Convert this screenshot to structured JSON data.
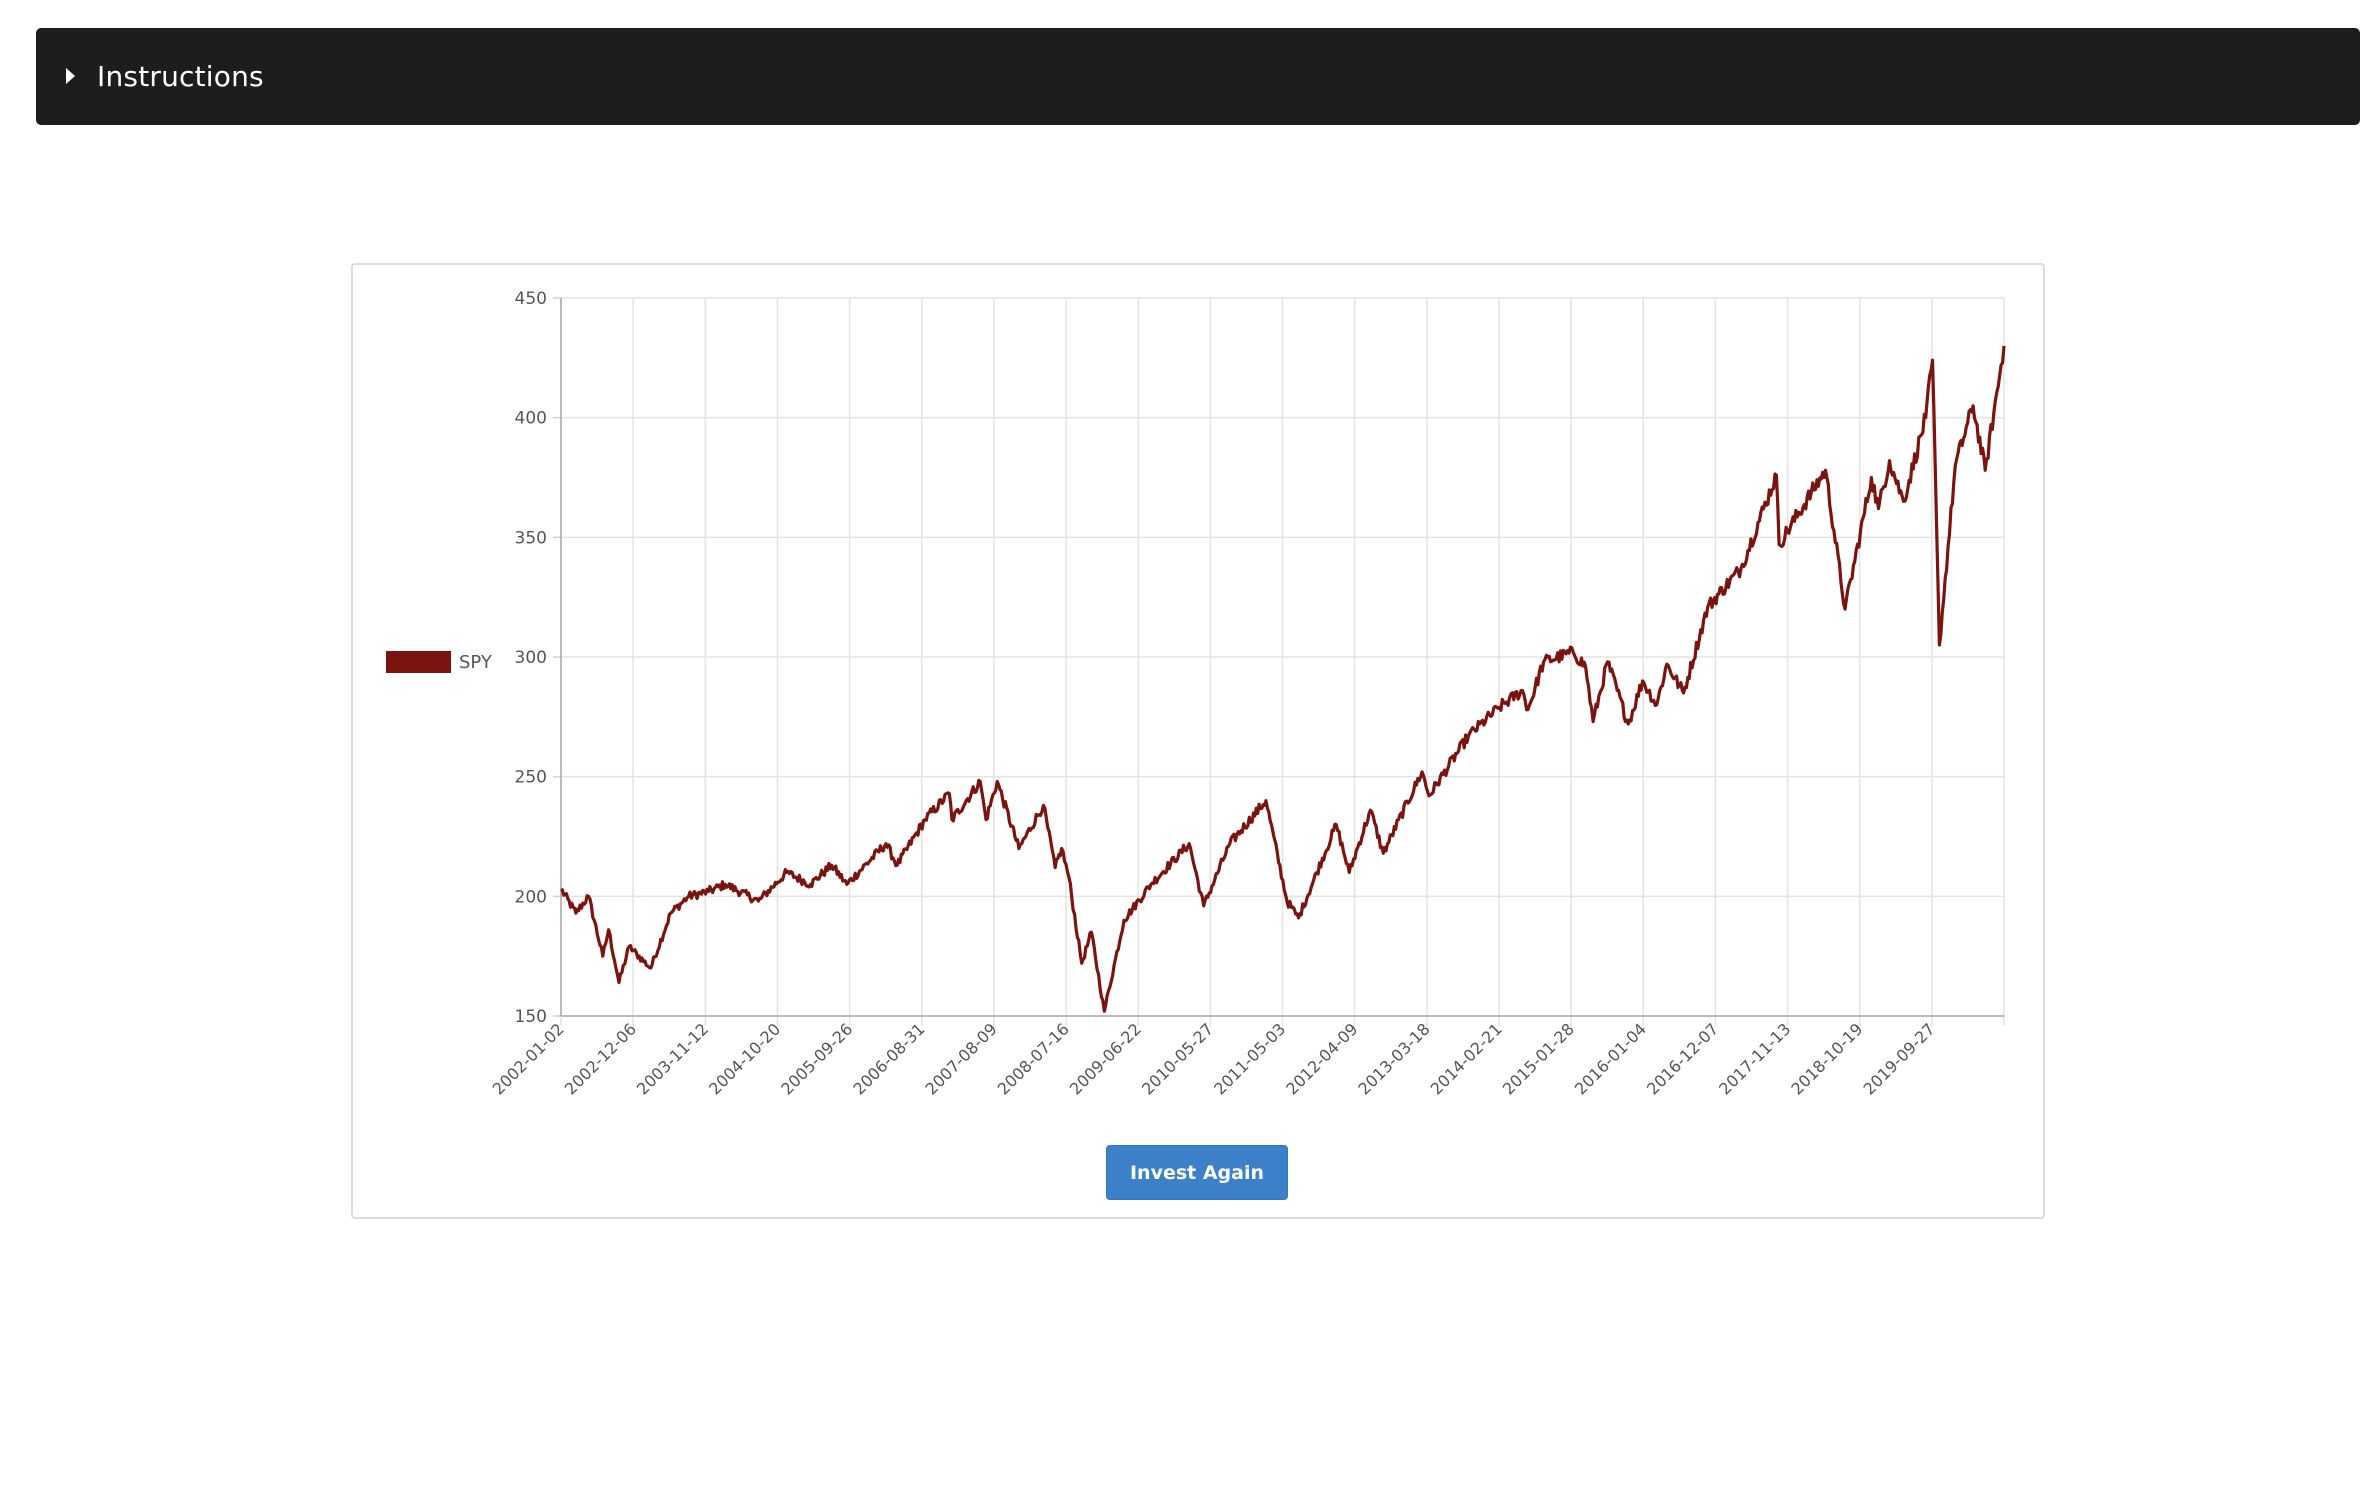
{
  "instructions": {
    "label": "Instructions",
    "icon": "caret-right-icon"
  },
  "chart_data": {
    "type": "line",
    "title": "",
    "xlabel": "",
    "ylabel": "",
    "ylim": [
      150,
      450
    ],
    "yticks": [
      150,
      200,
      250,
      300,
      350,
      400,
      450
    ],
    "xlim": [
      "2002-01-02",
      "2021-01-29"
    ],
    "xtick_labels": [
      "2002-01-02",
      "2002-12-06",
      "2003-11-12",
      "2004-10-20",
      "2005-09-26",
      "2006-08-31",
      "2007-08-09",
      "2008-07-16",
      "2009-06-22",
      "2010-05-27",
      "2011-05-03",
      "2012-04-09",
      "2013-03-18",
      "2014-02-21",
      "2015-01-28",
      "2016-01-04",
      "2016-12-07",
      "2017-11-13",
      "2018-10-19",
      "2019-09-27"
    ],
    "grid": true,
    "legend_position": "left",
    "series": [
      {
        "name": "SPY",
        "color": "#7b140e",
        "x": [
          "2002-01-02",
          "2002-03-15",
          "2002-05-15",
          "2002-07-23",
          "2002-08-20",
          "2002-10-09",
          "2002-11-27",
          "2003-03-11",
          "2003-06-16",
          "2003-09-10",
          "2003-12-15",
          "2004-03-05",
          "2004-08-12",
          "2004-12-27",
          "2005-04-20",
          "2005-08-01",
          "2005-10-13",
          "2006-04-20",
          "2006-06-13",
          "2006-10-25",
          "2007-02-20",
          "2007-03-05",
          "2007-07-19",
          "2007-08-16",
          "2007-10-09",
          "2008-01-22",
          "2008-05-19",
          "2008-07-15",
          "2008-08-15",
          "2008-09-19",
          "2008-11-20",
          "2009-01-06",
          "2009-03-09",
          "2009-06-12",
          "2009-10-20",
          "2010-04-23",
          "2010-07-02",
          "2010-11-05",
          "2011-04-29",
          "2011-08-08",
          "2011-10-03",
          "2012-04-02",
          "2012-06-04",
          "2012-09-14",
          "2012-11-15",
          "2013-05-21",
          "2013-06-24",
          "2013-12-31",
          "2014-05-30",
          "2014-09-18",
          "2014-10-15",
          "2014-12-29",
          "2015-05-21",
          "2015-07-20",
          "2015-08-25",
          "2015-11-03",
          "2016-02-11",
          "2016-04-20",
          "2016-06-27",
          "2016-08-15",
          "2016-11-04",
          "2017-03-01",
          "2017-08-08",
          "2018-01-26",
          "2018-02-08",
          "2018-09-20",
          "2018-12-24",
          "2019-04-30",
          "2019-06-03",
          "2019-07-26",
          "2019-10-02",
          "2020-01-17",
          "2020-02-19",
          "2020-03-23",
          "2020-06-08",
          "2020-09-02",
          "2020-10-30",
          "2021-01-29"
        ],
        "values": [
          203,
          193,
          200,
          175,
          186,
          164,
          179,
          170,
          193,
          200,
          202,
          205,
          198,
          210,
          205,
          213,
          205,
          222,
          213,
          232,
          243,
          232,
          248,
          232,
          248,
          220,
          238,
          212,
          220,
          208,
          172,
          185,
          152,
          190,
          205,
          222,
          196,
          222,
          240,
          198,
          191,
          230,
          210,
          236,
          218,
          252,
          242,
          267,
          279,
          286,
          278,
          298,
          302,
          296,
          273,
          298,
          272,
          290,
          280,
          297,
          285,
          321,
          337,
          376,
          347,
          378,
          320,
          375,
          362,
          382,
          365,
          400,
          424,
          305,
          380,
          405,
          378,
          430
        ]
      }
    ]
  },
  "invest_button": {
    "label": "Invest Again"
  }
}
